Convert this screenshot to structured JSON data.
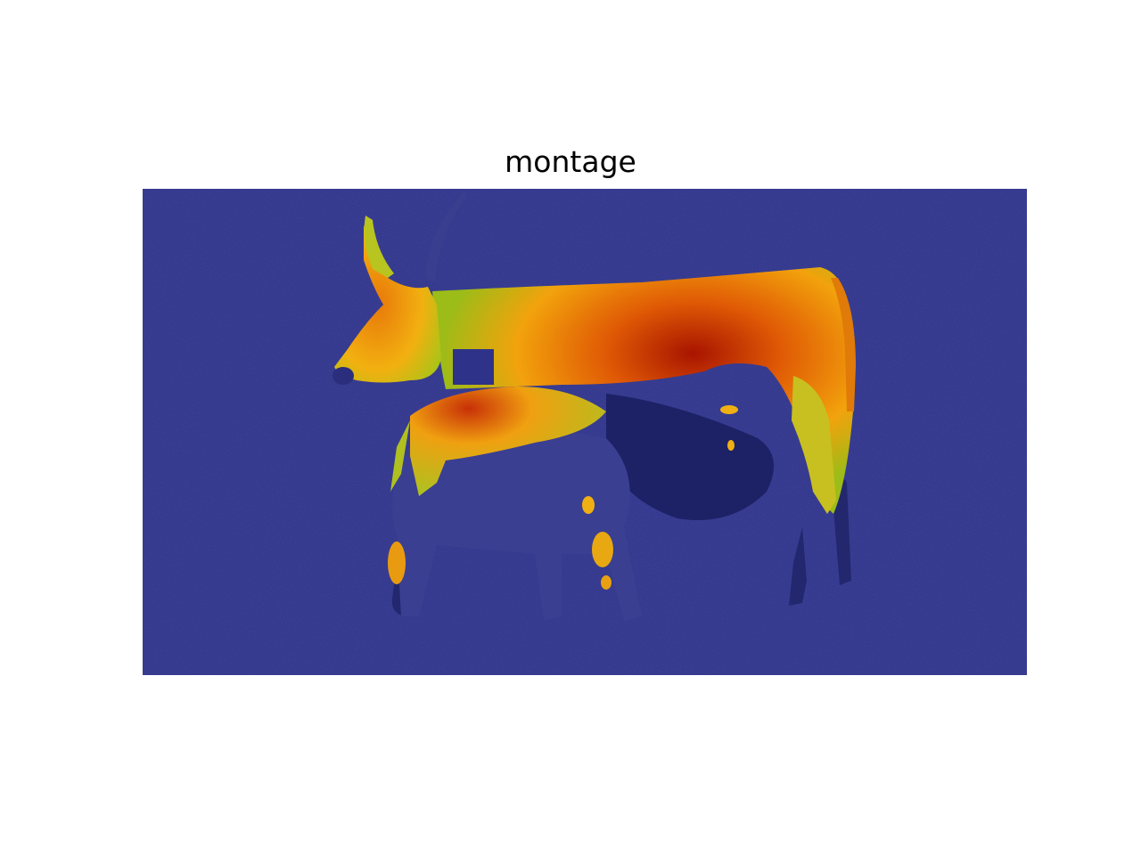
{
  "figure": {
    "title": "montage"
  },
  "image": {
    "description_colors": {
      "background": "#2b2f86",
      "low": "#1f2470",
      "mid": "#8fbf20",
      "high": "#f2a20c",
      "peak": "#b01800"
    },
    "icons": [
      "overlay-heatmap-image"
    ]
  }
}
